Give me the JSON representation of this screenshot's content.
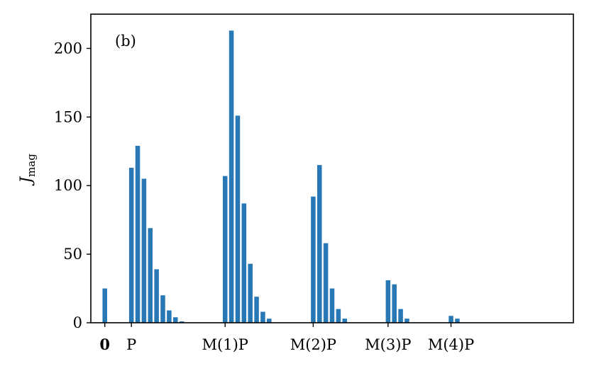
{
  "chart_data": {
    "type": "bar",
    "annotation": "(b)",
    "ylabel": {
      "main": "J",
      "sub": "mag"
    },
    "ylim": [
      0,
      225
    ],
    "yticks": [
      "0",
      "50",
      "100",
      "150",
      "200"
    ],
    "xlim": [
      -0.2,
      6.7
    ],
    "grid": false,
    "color": "#2878b5",
    "xticks": [
      {
        "pos": 0,
        "label": "0",
        "bold": true
      },
      {
        "pos": 0.38,
        "label": "P",
        "bold": false
      },
      {
        "pos": 1.72,
        "label": "M(1)P",
        "bold": false
      },
      {
        "pos": 2.98,
        "label": "M(2)P",
        "bold": false
      },
      {
        "pos": 4.05,
        "label": "M(3)P",
        "bold": false
      },
      {
        "pos": 4.95,
        "label": "M(4)P",
        "bold": false
      }
    ],
    "bars": [
      {
        "x": 0.0,
        "value": 25
      },
      {
        "x": 0.38,
        "value": 113
      },
      {
        "x": 0.47,
        "value": 129
      },
      {
        "x": 0.56,
        "value": 105
      },
      {
        "x": 0.65,
        "value": 69
      },
      {
        "x": 0.74,
        "value": 39
      },
      {
        "x": 0.83,
        "value": 20
      },
      {
        "x": 0.92,
        "value": 9
      },
      {
        "x": 1.01,
        "value": 4
      },
      {
        "x": 1.1,
        "value": 1
      },
      {
        "x": 1.72,
        "value": 107
      },
      {
        "x": 1.81,
        "value": 213
      },
      {
        "x": 1.9,
        "value": 151
      },
      {
        "x": 1.99,
        "value": 87
      },
      {
        "x": 2.08,
        "value": 43
      },
      {
        "x": 2.17,
        "value": 19
      },
      {
        "x": 2.26,
        "value": 8
      },
      {
        "x": 2.35,
        "value": 3
      },
      {
        "x": 2.98,
        "value": 92
      },
      {
        "x": 3.07,
        "value": 115
      },
      {
        "x": 3.16,
        "value": 58
      },
      {
        "x": 3.25,
        "value": 25
      },
      {
        "x": 3.34,
        "value": 10
      },
      {
        "x": 3.43,
        "value": 3
      },
      {
        "x": 4.05,
        "value": 31
      },
      {
        "x": 4.14,
        "value": 28
      },
      {
        "x": 4.23,
        "value": 10
      },
      {
        "x": 4.32,
        "value": 3
      },
      {
        "x": 4.95,
        "value": 5
      },
      {
        "x": 5.04,
        "value": 3
      }
    ]
  }
}
